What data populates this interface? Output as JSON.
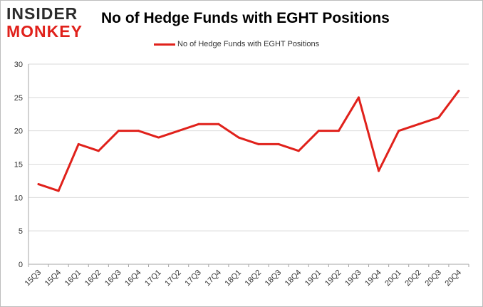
{
  "logo": {
    "line1": "INSIDER",
    "line2": "MONKEY"
  },
  "colors": {
    "line": "#e0211b",
    "grid": "#d9d9d9",
    "axis": "#a6a6a6"
  },
  "chart_data": {
    "type": "line",
    "title": "No of Hedge Funds with EGHT Positions",
    "categories": [
      "15Q3",
      "15Q4",
      "16Q1",
      "16Q2",
      "16Q3",
      "16Q4",
      "17Q1",
      "17Q2",
      "17Q3",
      "17Q4",
      "18Q1",
      "18Q2",
      "18Q3",
      "18Q4",
      "19Q1",
      "19Q2",
      "19Q3",
      "19Q4",
      "20Q1",
      "20Q2",
      "20Q3",
      "20Q4"
    ],
    "series": [
      {
        "name": "No of Hedge Funds with EGHT Positions",
        "values": [
          12,
          11,
          18,
          17,
          20,
          20,
          19,
          20,
          21,
          21,
          19,
          18,
          18,
          17,
          20,
          20,
          25,
          14,
          20,
          21,
          22,
          26
        ]
      }
    ],
    "ylim": [
      0,
      30
    ],
    "yticks": [
      0,
      5,
      10,
      15,
      20,
      25,
      30
    ],
    "grid": true,
    "legend": "top-center"
  }
}
